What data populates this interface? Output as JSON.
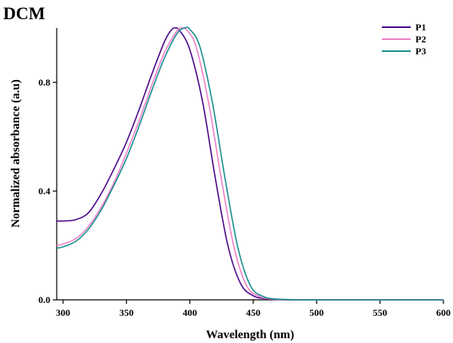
{
  "chart_data": {
    "type": "line",
    "title": "DCM",
    "xlabel": "Wavelength (nm)",
    "ylabel": "Normalized absorbance (a.u)",
    "xlim": [
      295,
      600
    ],
    "ylim": [
      0,
      1.0
    ],
    "xticks": [
      "300",
      "350",
      "400",
      "450",
      "500",
      "550",
      "600"
    ],
    "yticks": [
      "0.0",
      "0.4",
      "0.8"
    ],
    "legend": "top-right",
    "grid": false,
    "series": [
      {
        "name": "P1",
        "color": "#4b0a8c",
        "x": [
          295,
          300,
          310,
          320,
          330,
          340,
          350,
          360,
          370,
          380,
          385,
          388,
          392,
          400,
          410,
          420,
          430,
          440,
          450,
          460,
          470,
          480,
          500,
          520,
          550,
          600
        ],
        "y": [
          0.29,
          0.29,
          0.295,
          0.32,
          0.39,
          0.48,
          0.58,
          0.7,
          0.83,
          0.95,
          0.99,
          1.0,
          0.99,
          0.92,
          0.73,
          0.45,
          0.2,
          0.06,
          0.015,
          0.004,
          0.001,
          0.0,
          0.0,
          0.0,
          0.0,
          0.0
        ]
      },
      {
        "name": "P2",
        "color": "#ee82c8",
        "x": [
          295,
          300,
          310,
          320,
          330,
          340,
          350,
          360,
          370,
          380,
          390,
          394,
          398,
          405,
          415,
          425,
          435,
          445,
          455,
          465,
          475,
          490,
          510,
          550,
          600
        ],
        "y": [
          0.2,
          0.205,
          0.225,
          0.27,
          0.34,
          0.43,
          0.54,
          0.66,
          0.79,
          0.91,
          0.99,
          1.0,
          0.99,
          0.93,
          0.72,
          0.44,
          0.19,
          0.05,
          0.012,
          0.003,
          0.001,
          0.0,
          0.0,
          0.0,
          0.0
        ]
      },
      {
        "name": "P3",
        "color": "#1b8f8f",
        "x": [
          295,
          300,
          310,
          320,
          330,
          340,
          350,
          360,
          370,
          380,
          390,
          396,
          400,
          408,
          418,
          428,
          438,
          448,
          458,
          468,
          478,
          490,
          510,
          550,
          600
        ],
        "y": [
          0.19,
          0.195,
          0.215,
          0.26,
          0.33,
          0.42,
          0.52,
          0.64,
          0.77,
          0.89,
          0.98,
          1.0,
          0.995,
          0.93,
          0.72,
          0.44,
          0.19,
          0.05,
          0.012,
          0.003,
          0.001,
          0.0,
          0.0,
          0.0,
          0.0
        ]
      }
    ]
  }
}
